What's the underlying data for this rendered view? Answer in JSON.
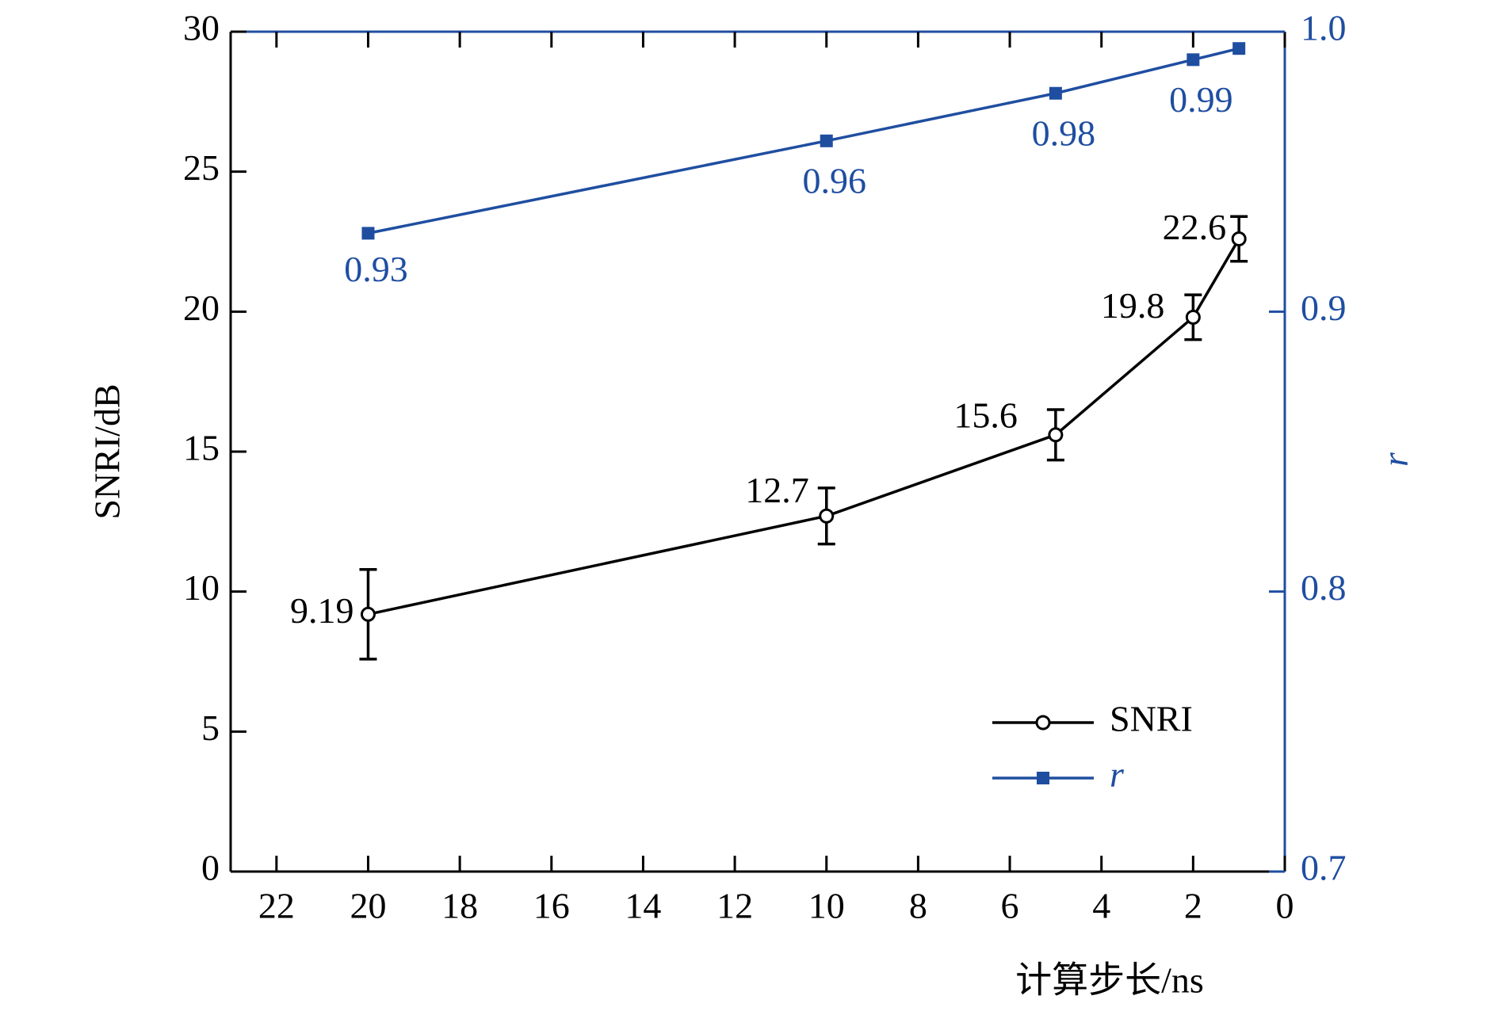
{
  "chart_data": {
    "type": "line",
    "xlabel": "计算步长/ns",
    "ylabel": "SNRI/dB",
    "y2label": "r",
    "x": [
      20,
      10,
      5,
      2,
      1
    ],
    "xlim": [
      23,
      0
    ],
    "xticks": [
      22,
      20,
      18,
      16,
      14,
      12,
      10,
      8,
      6,
      4,
      2,
      0
    ],
    "ylim": [
      0,
      30
    ],
    "yticks": [
      0,
      5,
      10,
      15,
      20,
      25,
      30
    ],
    "y2lim": [
      0.7,
      1
    ],
    "y2ticks": [
      0.7,
      0.8,
      0.9,
      {
        "value": 1,
        "label": "1.0"
      }
    ],
    "legend": "lower right",
    "series": [
      {
        "name": "SNRI",
        "color": "#000000",
        "marker": "open-circle",
        "values": [
          9.19,
          12.7,
          15.6,
          19.8,
          22.6
        ],
        "errors": [
          1.6,
          1.0,
          0.9,
          0.8,
          0.8
        ]
      },
      {
        "name": "r",
        "color": "#1f4ea1",
        "marker": "square",
        "axis": "y2",
        "values": [
          0.928,
          0.961,
          0.978,
          0.99,
          0.994
        ],
        "value_labels": [
          "0.93",
          "0.96",
          "0.98",
          "0.99",
          null
        ]
      }
    ]
  }
}
